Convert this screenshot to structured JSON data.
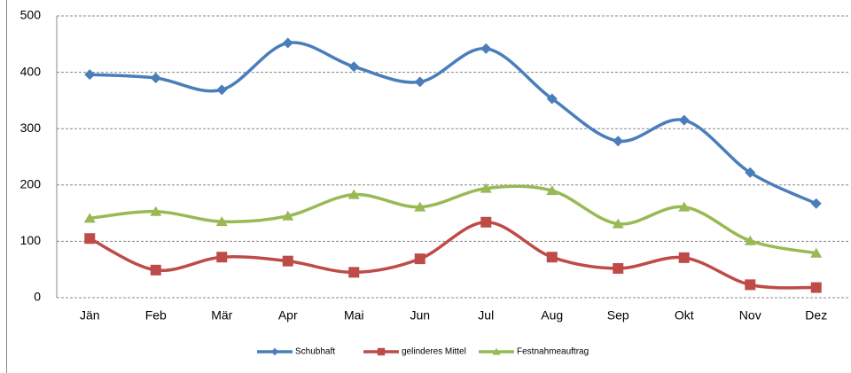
{
  "chart_data": {
    "type": "line",
    "smooth": true,
    "grid": true,
    "categories": [
      "Jän",
      "Feb",
      "Mär",
      "Apr",
      "Mai",
      "Jun",
      "Jul",
      "Aug",
      "Sep",
      "Okt",
      "Nov",
      "Dez"
    ],
    "series": [
      {
        "name": "Schubhaft",
        "color": "#4a7ebb",
        "marker": "diamond",
        "values": [
          396,
          390,
          369,
          452,
          410,
          383,
          442,
          353,
          278,
          315,
          222,
          167
        ]
      },
      {
        "name": "gelinderes Mittel",
        "color": "#be4b48",
        "marker": "square",
        "values": [
          105,
          49,
          72,
          65,
          45,
          69,
          134,
          72,
          52,
          71,
          23,
          18
        ]
      },
      {
        "name": "Festnahmeauftrag",
        "color": "#98b954",
        "marker": "triangle",
        "values": [
          141,
          153,
          135,
          145,
          183,
          161,
          194,
          190,
          131,
          161,
          101,
          79
        ]
      }
    ],
    "ylim": [
      0,
      500
    ],
    "yticks": [
      0,
      100,
      200,
      300,
      400,
      500
    ],
    "legend": "bottom"
  }
}
